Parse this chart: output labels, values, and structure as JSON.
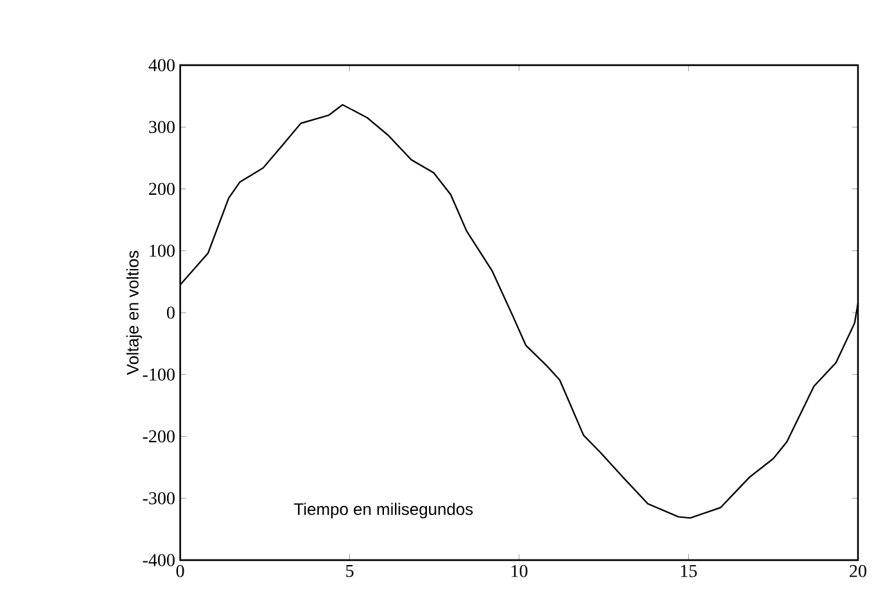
{
  "chart_data": {
    "type": "line",
    "xlabel": "Tiempo en milisegundos",
    "ylabel": "Voltaje en voltios",
    "x": [
      0,
      0.82,
      1.43,
      1.76,
      2.45,
      3.07,
      3.56,
      4.38,
      4.79,
      5.52,
      6.13,
      6.82,
      7.48,
      7.98,
      8.45,
      9.2,
      9.82,
      10.2,
      10.8,
      11.2,
      11.9,
      12.4,
      13.1,
      13.8,
      14.7,
      15.05,
      15.95,
      16.8,
      17.5,
      17.9,
      18.7,
      19.35,
      19.9,
      20
    ],
    "series": [
      {
        "color": "#000000",
        "values": [
          45,
          96,
          185,
          211,
          234,
          274,
          306,
          319,
          336,
          315,
          287,
          247,
          226,
          191,
          132,
          68,
          -6,
          -53,
          -85,
          -109,
          -198,
          -226,
          -268,
          -309,
          -330,
          -332,
          -315,
          -266,
          -236,
          -209,
          -119,
          -81,
          -17,
          15
        ]
      }
    ],
    "xlim": [
      0,
      20
    ],
    "ylim": [
      -400,
      400
    ],
    "xticks": [
      0,
      5,
      10,
      15,
      20
    ],
    "yticks": [
      -400,
      -300,
      -200,
      -100,
      0,
      100,
      200,
      300,
      400
    ],
    "grid": false,
    "marker": "none",
    "line_style": "solid"
  }
}
